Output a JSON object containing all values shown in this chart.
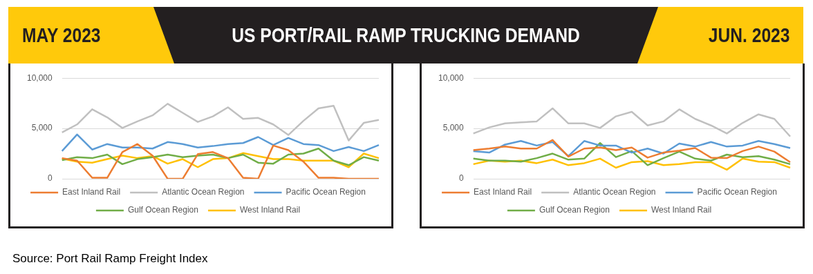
{
  "chart_data": [
    {
      "type": "line",
      "title": "US PORT/RAIL RAMP TRUCKING DEMAND",
      "subtitle": "MAY 2023",
      "categories": [
        null,
        null,
        null,
        null,
        null,
        null,
        null,
        null,
        null,
        null,
        null,
        null,
        null,
        null,
        null,
        null,
        null,
        null,
        null,
        null,
        null,
        null
      ],
      "series": [
        {
          "name": "East Inland Rail",
          "color": "#ed7d31",
          "values": [
            2050,
            1800,
            100,
            100,
            2650,
            3450,
            2300,
            0,
            0,
            2450,
            2650,
            2050,
            100,
            0,
            3300,
            2850,
            1700,
            100,
            100,
            0,
            0,
            0
          ]
        },
        {
          "name": "Atlantic Ocean Region",
          "color": "#c0c0c0",
          "values": [
            4600,
            5400,
            6900,
            6100,
            5050,
            5700,
            6300,
            7450,
            6550,
            5650,
            6200,
            7100,
            5950,
            6050,
            5400,
            4350,
            5750,
            7000,
            7250,
            3800,
            5550,
            5850
          ]
        },
        {
          "name": "Pacific Ocean Region",
          "color": "#5b9bd5",
          "values": [
            2750,
            4400,
            2900,
            3450,
            3100,
            3100,
            3000,
            3650,
            3450,
            3100,
            3250,
            3450,
            3550,
            4150,
            3350,
            4050,
            3450,
            3350,
            2750,
            3150,
            2750,
            3350
          ]
        },
        {
          "name": "Gulf Ocean Region",
          "color": "#70ad47",
          "values": [
            1850,
            2150,
            2050,
            2400,
            1450,
            1950,
            2150,
            2400,
            2150,
            2300,
            2400,
            2050,
            2400,
            1600,
            1500,
            2400,
            2500,
            3000,
            1800,
            1350,
            2150,
            1800
          ]
        },
        {
          "name": "West Inland Rail",
          "color": "#ffc000",
          "values": [
            2000,
            1700,
            1600,
            1950,
            2300,
            2050,
            2250,
            1500,
            1950,
            1150,
            1950,
            2050,
            2550,
            2250,
            1950,
            1950,
            1800,
            1800,
            1800,
            1150,
            2500,
            2050
          ]
        }
      ],
      "ylim": [
        0,
        10000
      ],
      "yticks": [
        {
          "value": 0,
          "label": "0"
        },
        {
          "value": 5000,
          "label": "5,000"
        },
        {
          "value": 10000,
          "label": "10,000"
        }
      ],
      "grid": "y",
      "legend": "bottom",
      "marker": "none",
      "line_style": "solid",
      "tick_labels": "y",
      "annotations": [
        "Source: Port Rail Ramp Freight Index"
      ]
    },
    {
      "type": "line",
      "subtitle": "JUN. 2023",
      "categories": [
        null,
        null,
        null,
        null,
        null,
        null,
        null,
        null,
        null,
        null,
        null,
        null,
        null,
        null,
        null,
        null,
        null,
        null,
        null,
        null,
        null
      ],
      "series": [
        {
          "name": "East Inland Rail",
          "color": "#ed7d31",
          "values": [
            2850,
            3000,
            3200,
            3000,
            3000,
            3850,
            2200,
            3000,
            3100,
            2850,
            3100,
            2100,
            2600,
            2800,
            3050,
            2100,
            2050,
            2750,
            3200,
            2700,
            1650
          ]
        },
        {
          "name": "Atlantic Ocean Region",
          "color": "#c0c0c0",
          "values": [
            4500,
            5100,
            5500,
            5600,
            5700,
            7000,
            5500,
            5500,
            5050,
            6200,
            6650,
            5300,
            5700,
            6900,
            5950,
            5300,
            4500,
            5550,
            6400,
            5950,
            4200
          ]
        },
        {
          "name": "Pacific Ocean Region",
          "color": "#5b9bd5",
          "values": [
            2750,
            2600,
            3400,
            3750,
            3300,
            3650,
            2250,
            3750,
            3300,
            3300,
            2600,
            3000,
            2500,
            3500,
            3200,
            3650,
            3200,
            3300,
            3750,
            3450,
            3050
          ]
        },
        {
          "name": "Gulf Ocean Region",
          "color": "#70ad47",
          "values": [
            2000,
            1800,
            1800,
            1700,
            2050,
            2500,
            1900,
            2000,
            3550,
            2150,
            2750,
            1350,
            2050,
            2700,
            2000,
            1800,
            2400,
            2150,
            2250,
            1900,
            1450
          ]
        },
        {
          "name": "West Inland Rail",
          "color": "#ffc000",
          "values": [
            1450,
            1800,
            1700,
            1800,
            1550,
            1900,
            1350,
            1550,
            2000,
            1100,
            1650,
            1750,
            1350,
            1450,
            1650,
            1650,
            900,
            2000,
            1700,
            1650,
            1100
          ]
        }
      ],
      "ylim": [
        0,
        10000
      ],
      "yticks": [
        {
          "value": 0,
          "label": "0"
        },
        {
          "value": 5000,
          "label": "5,000"
        },
        {
          "value": 10000,
          "label": "10,000"
        }
      ],
      "grid": "y",
      "legend": "bottom",
      "marker": "none",
      "line_style": "solid",
      "tick_labels": "y"
    }
  ]
}
